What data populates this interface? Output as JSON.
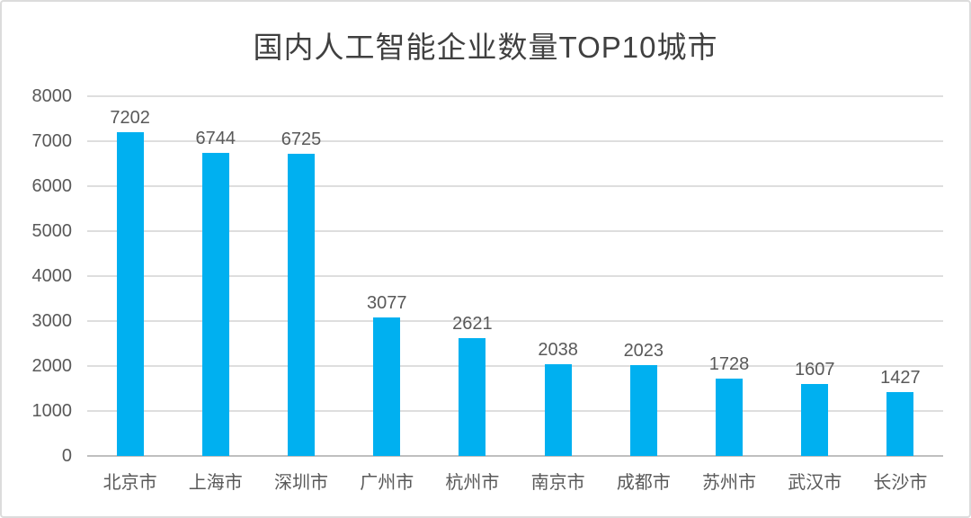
{
  "chart_data": {
    "type": "bar",
    "title": "国内人工智能企业数量TOP10城市",
    "categories": [
      "北京市",
      "上海市",
      "深圳市",
      "广州市",
      "杭州市",
      "南京市",
      "成都市",
      "苏州市",
      "武汉市",
      "长沙市"
    ],
    "values": [
      7202,
      6744,
      6725,
      3077,
      2621,
      2038,
      2023,
      1728,
      1607,
      1427
    ],
    "xlabel": "",
    "ylabel": "",
    "ylim": [
      0,
      8000
    ],
    "ytick_interval": 1000,
    "yticks": [
      0,
      1000,
      2000,
      3000,
      4000,
      5000,
      6000,
      7000,
      8000
    ],
    "grid": true,
    "legend_position": "none",
    "data_labels": true,
    "colors": {
      "bar": "#00B0F0",
      "gridline": "#DEDEDE",
      "axis_line": "#BFBFBF",
      "tick_label": "#595959",
      "data_label": "#595959",
      "title": "#404040",
      "background": "#FFFFFF",
      "frame_border": "#DCDCDC"
    }
  }
}
